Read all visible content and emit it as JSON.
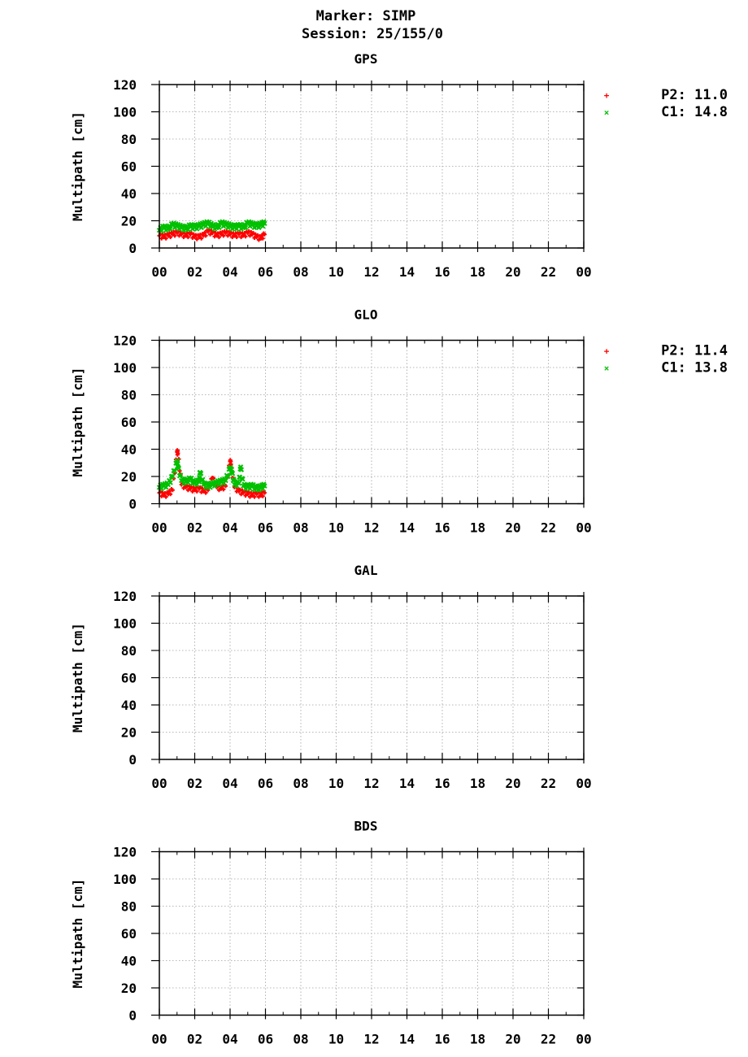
{
  "header": {
    "marker": "Marker: SIMP",
    "session": "Session: 25/155/0"
  },
  "colors": {
    "P2": "#ff0000",
    "C1": "#00c000",
    "grid": "#a0a0a0",
    "axis": "#000000"
  },
  "chart_data": [
    {
      "type": "scatter",
      "title": "GPS",
      "ylabel": "Multipath [cm]",
      "xlabel": "",
      "xlim": [
        0,
        24
      ],
      "ylim": [
        0,
        120
      ],
      "x_ticks": [
        "00",
        "02",
        "04",
        "06",
        "08",
        "10",
        "12",
        "14",
        "16",
        "18",
        "20",
        "22",
        "00"
      ],
      "y_ticks": [
        "0",
        "20",
        "40",
        "60",
        "80",
        "100",
        "120"
      ],
      "grid": true,
      "legend_position": "right",
      "legend": [
        "P2: 11.0",
        "C1: 14.8"
      ],
      "series": [
        {
          "name": "P2",
          "x": [
            0.0,
            0.25,
            0.5,
            0.75,
            1.0,
            1.25,
            1.5,
            1.75,
            2.0,
            2.25,
            2.5,
            2.75,
            3.0,
            3.25,
            3.5,
            3.75,
            4.0,
            4.25,
            4.5,
            4.75,
            5.0,
            5.25,
            5.5,
            5.75,
            5.95
          ],
          "y": [
            9,
            8,
            9,
            10,
            11,
            10,
            9,
            10,
            8,
            8,
            9,
            12,
            11,
            9,
            10,
            11,
            10,
            9,
            10,
            9,
            11,
            10,
            8,
            7,
            10
          ]
        },
        {
          "name": "C1",
          "x": [
            0.0,
            0.25,
            0.5,
            0.75,
            1.0,
            1.25,
            1.5,
            1.75,
            2.0,
            2.25,
            2.5,
            2.75,
            3.0,
            3.25,
            3.5,
            3.75,
            4.0,
            4.25,
            4.5,
            4.75,
            5.0,
            5.25,
            5.5,
            5.75,
            5.95
          ],
          "y": [
            13,
            15,
            14,
            17,
            16,
            15,
            14,
            16,
            15,
            16,
            17,
            18,
            16,
            15,
            18,
            17,
            16,
            15,
            16,
            15,
            18,
            17,
            16,
            17,
            18
          ]
        }
      ]
    },
    {
      "type": "scatter",
      "title": "GLO",
      "ylabel": "Multipath [cm]",
      "xlabel": "",
      "xlim": [
        0,
        24
      ],
      "ylim": [
        0,
        120
      ],
      "x_ticks": [
        "00",
        "02",
        "04",
        "06",
        "08",
        "10",
        "12",
        "14",
        "16",
        "18",
        "20",
        "22",
        "00"
      ],
      "y_ticks": [
        "0",
        "20",
        "40",
        "60",
        "80",
        "100",
        "120"
      ],
      "grid": true,
      "legend_position": "right",
      "legend": [
        "P2: 11.4",
        "C1: 13.8"
      ],
      "series": [
        {
          "name": "P2",
          "x": [
            0.0,
            0.25,
            0.5,
            0.75,
            1.0,
            1.05,
            1.25,
            1.5,
            1.75,
            2.0,
            2.25,
            2.5,
            2.75,
            3.0,
            3.25,
            3.5,
            3.75,
            4.0,
            4.05,
            4.25,
            4.5,
            4.75,
            5.0,
            5.25,
            5.5,
            5.75,
            5.95
          ],
          "y": [
            8,
            6,
            7,
            10,
            38,
            37,
            14,
            12,
            11,
            10,
            11,
            9,
            10,
            19,
            12,
            11,
            13,
            31,
            29,
            12,
            9,
            8,
            7,
            6,
            7,
            6,
            8
          ]
        },
        {
          "name": "C1",
          "x": [
            0.0,
            0.25,
            0.5,
            0.75,
            1.0,
            1.05,
            1.25,
            1.5,
            1.75,
            2.0,
            2.25,
            2.3,
            2.5,
            2.75,
            3.0,
            3.25,
            3.5,
            3.75,
            4.0,
            4.1,
            4.25,
            4.5,
            4.6,
            4.75,
            5.0,
            5.25,
            5.5,
            5.75,
            5.95
          ],
          "y": [
            12,
            13,
            14,
            20,
            31,
            27,
            17,
            16,
            18,
            15,
            16,
            23,
            14,
            13,
            14,
            15,
            16,
            17,
            26,
            23,
            14,
            15,
            27,
            13,
            12,
            13,
            11,
            12,
            13
          ]
        }
      ]
    },
    {
      "type": "scatter",
      "title": "GAL",
      "ylabel": "Multipath [cm]",
      "xlabel": "",
      "xlim": [
        0,
        24
      ],
      "ylim": [
        0,
        120
      ],
      "x_ticks": [
        "00",
        "02",
        "04",
        "06",
        "08",
        "10",
        "12",
        "14",
        "16",
        "18",
        "20",
        "22",
        "00"
      ],
      "y_ticks": [
        "0",
        "20",
        "40",
        "60",
        "80",
        "100",
        "120"
      ],
      "grid": true,
      "legend": [],
      "series": []
    },
    {
      "type": "scatter",
      "title": "BDS",
      "ylabel": "Multipath [cm]",
      "xlabel": "",
      "xlim": [
        0,
        24
      ],
      "ylim": [
        0,
        120
      ],
      "x_ticks": [
        "00",
        "02",
        "04",
        "06",
        "08",
        "10",
        "12",
        "14",
        "16",
        "18",
        "20",
        "22",
        "00"
      ],
      "y_ticks": [
        "0",
        "20",
        "40",
        "60",
        "80",
        "100",
        "120"
      ],
      "grid": true,
      "legend": [],
      "series": []
    }
  ]
}
